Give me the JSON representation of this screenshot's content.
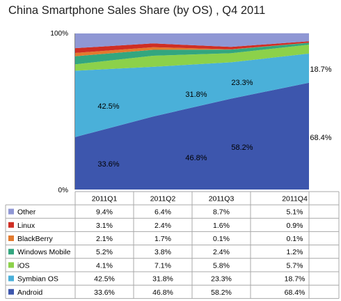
{
  "chart_data": {
    "type": "area",
    "stacked": true,
    "title": "China Smartphone Sales Share (by OS) , Q4 2011",
    "categories": [
      "2011Q1",
      "2011Q2",
      "2011Q3",
      "2011Q4"
    ],
    "yticks": [
      "0%",
      "100%"
    ],
    "ylim": [
      0,
      100
    ],
    "series": [
      {
        "name": "Android",
        "color": "#3d56ad",
        "values": [
          33.6,
          46.8,
          58.2,
          68.4
        ],
        "display": [
          "33.6%",
          "46.8%",
          "58.2%",
          "68.4%"
        ]
      },
      {
        "name": "Symbian OS",
        "color": "#4ab0d9",
        "values": [
          42.5,
          31.8,
          23.3,
          18.7
        ],
        "display": [
          "42.5%",
          "31.8%",
          "23.3%",
          "18.7%"
        ]
      },
      {
        "name": "iOS",
        "color": "#8cd14a",
        "values": [
          4.1,
          7.1,
          5.8,
          5.7
        ],
        "display": [
          "4.1%",
          "7.1%",
          "5.8%",
          "5.7%"
        ]
      },
      {
        "name": "Windows Mobile",
        "color": "#33a67f",
        "values": [
          5.2,
          3.8,
          2.4,
          1.2
        ],
        "display": [
          "5.2%",
          "3.8%",
          "2.4%",
          "1.2%"
        ]
      },
      {
        "name": "BlackBerry",
        "color": "#e27a2e",
        "values": [
          2.1,
          1.7,
          0.1,
          0.1
        ],
        "display": [
          "2.1%",
          "1.7%",
          "0.1%",
          "0.1%"
        ]
      },
      {
        "name": "Linux",
        "color": "#cf2e24",
        "values": [
          3.1,
          2.4,
          1.6,
          0.9
        ],
        "display": [
          "3.1%",
          "2.4%",
          "1.6%",
          "0.9%"
        ]
      },
      {
        "name": "Other",
        "color": "#8f97d4",
        "values": [
          9.4,
          6.4,
          8.7,
          5.1
        ],
        "display": [
          "9.4%",
          "6.4%",
          "8.7%",
          "5.1%"
        ]
      }
    ],
    "labels": {
      "Android": [
        "33.6%",
        "46.8%",
        "58.2%",
        "68.4%"
      ],
      "Symbian OS": [
        "42.5%",
        "31.8%",
        "23.3%",
        "18.7%"
      ]
    },
    "legend": "table-below"
  }
}
